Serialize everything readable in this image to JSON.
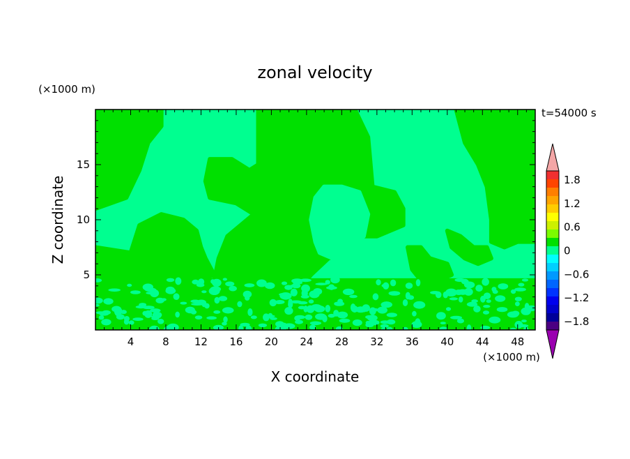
{
  "chart_data": {
    "type": "heatmap",
    "title": "zonal velocity",
    "xlabel": "X coordinate",
    "ylabel": "Z coordinate",
    "x_unit": "(×1000 m)",
    "y_unit": "(×1000 m)",
    "time_label": "t=54000 s",
    "xlim": [
      0,
      50
    ],
    "ylim": [
      0,
      20
    ],
    "x_ticks": [
      4,
      8,
      12,
      16,
      20,
      24,
      28,
      32,
      36,
      40,
      44,
      48
    ],
    "y_ticks": [
      5,
      10,
      15
    ],
    "colorbar": {
      "ticks": [
        "1.8",
        "1.2",
        "0.6",
        "0",
        "−0.6",
        "−1.2",
        "−1.8"
      ],
      "colors_top_to_bottom": [
        "#f03030",
        "#ff4500",
        "#ff7f00",
        "#ffa500",
        "#ffcc00",
        "#ffff00",
        "#cdf000",
        "#7cfc00",
        "#00e000",
        "#00ff90",
        "#00ffff",
        "#00d0ff",
        "#0099ff",
        "#0066ff",
        "#0033ff",
        "#0000ee",
        "#0000cc",
        "#000099",
        "#4b0082"
      ],
      "over_color": "#f4a6a6",
      "under_color": "#9a00b0"
    },
    "field_colors": {
      "positive": "#00e000",
      "negative": "#00ff90"
    },
    "regions": [
      {
        "sign": "positive",
        "pts": [
          [
            0,
            20
          ],
          [
            7.5,
            20
          ],
          [
            7.5,
            18.5
          ],
          [
            6,
            17
          ],
          [
            5,
            14.5
          ],
          [
            3.5,
            12
          ],
          [
            0,
            11
          ]
        ]
      },
      {
        "sign": "positive",
        "pts": [
          [
            18.5,
            20
          ],
          [
            29.5,
            20
          ],
          [
            31,
            17.5
          ],
          [
            31.5,
            13
          ],
          [
            34,
            12.5
          ],
          [
            35,
            11
          ],
          [
            35,
            9.5
          ],
          [
            32,
            8.5
          ],
          [
            29.5,
            8.5
          ],
          [
            28,
            7
          ],
          [
            26.5,
            6.5
          ],
          [
            24.5,
            5
          ],
          [
            24,
            4.5
          ],
          [
            20,
            4.5
          ],
          [
            15,
            4.5
          ],
          [
            13.5,
            4.5
          ],
          [
            14,
            6.5
          ],
          [
            15,
            8.5
          ],
          [
            16.5,
            9.5
          ],
          [
            18,
            10.5
          ],
          [
            16,
            11.5
          ],
          [
            13,
            12
          ],
          [
            12.5,
            13.5
          ],
          [
            13,
            15.5
          ],
          [
            15.5,
            15.5
          ],
          [
            17.5,
            14.5
          ],
          [
            18.5,
            15
          ],
          [
            18.5,
            17
          ]
        ]
      },
      {
        "sign": "negative",
        "pts": [
          [
            26,
            13
          ],
          [
            28,
            13
          ],
          [
            30,
            12.5
          ],
          [
            31,
            10.5
          ],
          [
            30.5,
            8.5
          ],
          [
            28.5,
            7
          ],
          [
            27,
            6.5
          ],
          [
            25.5,
            7
          ],
          [
            25,
            8
          ],
          [
            24.5,
            10
          ],
          [
            25,
            12
          ]
        ]
      },
      {
        "sign": "positive",
        "pts": [
          [
            41,
            20
          ],
          [
            50,
            20
          ],
          [
            50,
            8
          ],
          [
            48,
            8
          ],
          [
            46.5,
            7.5
          ],
          [
            45,
            8
          ],
          [
            45,
            10
          ],
          [
            44.5,
            13
          ],
          [
            43.5,
            15
          ],
          [
            42,
            17
          ]
        ]
      },
      {
        "sign": "positive",
        "pts": [
          [
            0,
            7.5
          ],
          [
            4,
            7
          ],
          [
            5,
            9.5
          ],
          [
            7.5,
            10.5
          ],
          [
            10,
            10
          ],
          [
            11.5,
            9
          ],
          [
            12,
            7.5
          ],
          [
            12.5,
            6.5
          ],
          [
            13.5,
            5
          ],
          [
            12,
            4.5
          ],
          [
            8,
            4.5
          ],
          [
            4,
            4.5
          ],
          [
            0,
            4.5
          ]
        ]
      },
      {
        "sign": "positive",
        "pts": [
          [
            35.5,
            7.5
          ],
          [
            37,
            7.5
          ],
          [
            38,
            6.5
          ],
          [
            40,
            6
          ],
          [
            40.5,
            5
          ],
          [
            39,
            4.5
          ],
          [
            37,
            4.5
          ],
          [
            36,
            5.5
          ]
        ]
      },
      {
        "sign": "positive",
        "pts": [
          [
            40,
            9
          ],
          [
            41.5,
            8.5
          ],
          [
            43,
            7.5
          ],
          [
            44.5,
            7.5
          ],
          [
            45,
            6.5
          ],
          [
            43.5,
            6
          ],
          [
            42,
            6.5
          ],
          [
            40.5,
            7.5
          ]
        ]
      },
      {
        "sign": "positive",
        "pts": [
          [
            0,
            4.5
          ],
          [
            50,
            4.5
          ],
          [
            50,
            0
          ],
          [
            0,
            0
          ]
        ]
      }
    ]
  }
}
